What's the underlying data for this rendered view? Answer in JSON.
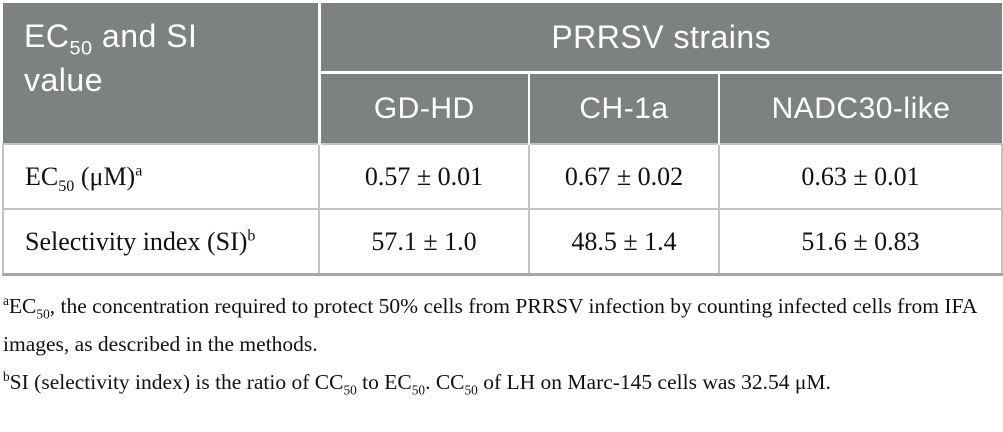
{
  "table": {
    "corner_header": "EC<sub>50</sub> and SI value",
    "group_header": "PRRSV strains",
    "columns": [
      "GD-HD",
      "CH-1a",
      "NADC30-like"
    ],
    "rows": [
      {
        "label": "EC<sub>50</sub> (μM)<sup>a</sup>",
        "values": [
          "0.57 ± 0.01",
          "0.67 ± 0.02",
          "0.63 ± 0.01"
        ]
      },
      {
        "label": "Selectivity index (SI)<sup>b</sup>",
        "values": [
          "57.1 ± 1.0",
          "48.5 ± 1.4",
          "51.6 ± 0.83"
        ]
      }
    ]
  },
  "footnotes": [
    "<sup>a</sup>EC<sub>50</sub>, the concentration required to protect 50% cells from PRRSV infection by counting infected cells from IFA images, as described in the methods.",
    "<sup>b</sup>SI (selectivity index) is the ratio of CC<sub>50</sub> to EC<sub>50</sub>. CC<sub>50</sub> of LH on Marc-145 cells was 32.54 μM."
  ],
  "colors": {
    "header_bg": "#7e8182",
    "header_text": "#ffffff",
    "body_border": "#c3c3c3",
    "table_bottom_border": "#a6a6a6",
    "body_text": "#111111"
  }
}
